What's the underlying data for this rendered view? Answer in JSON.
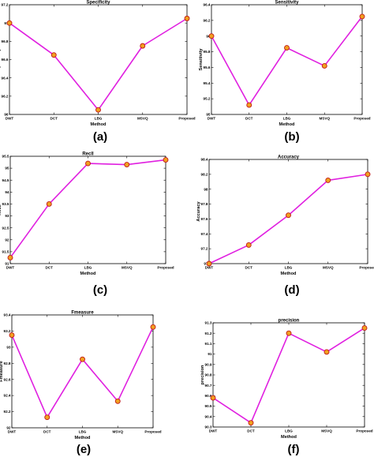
{
  "chart_data": [
    {
      "type": "line",
      "panel_label": "(a)",
      "title": "Specificity",
      "xlabel": "Method",
      "ylabel": "Specificity",
      "categories": [
        "DWT",
        "DCT",
        "LBG",
        "MSVQ",
        "Proposed"
      ],
      "ylim": [
        96,
        97.2
      ],
      "yticks": [
        "96",
        "96.2",
        "96.4",
        "96.6",
        "96.8",
        "97",
        "97.2"
      ],
      "series": [
        {
          "values": [
            97.0,
            96.65,
            96.05,
            96.75,
            97.05
          ]
        }
      ],
      "line_color": "#e020e0",
      "marker_color": "#f0a020",
      "grid": false
    },
    {
      "type": "line",
      "panel_label": "(b)",
      "title": "Sensitivity",
      "xlabel": "Method",
      "ylabel": "Sensitivity",
      "categories": [
        "DWT",
        "DCT",
        "LBG",
        "MSVQ",
        "Proposed"
      ],
      "ylim": [
        95,
        96.4
      ],
      "yticks": [
        "95",
        "95.2",
        "95.4",
        "95.6",
        "95.8",
        "96",
        "96.2",
        "96.4"
      ],
      "series": [
        {
          "values": [
            96.0,
            95.12,
            95.85,
            95.62,
            96.25
          ]
        }
      ],
      "line_color": "#e020e0",
      "marker_color": "#f0a020",
      "grid": false
    },
    {
      "type": "line",
      "panel_label": "(c)",
      "title": "Recll",
      "xlabel": "Method",
      "ylabel": "Recll",
      "categories": [
        "DWT",
        "DCT",
        "LBG",
        "MSVQ",
        "Proposed"
      ],
      "ylim": [
        91,
        95.5
      ],
      "yticks": [
        "91",
        "91.5",
        "92",
        "92.5",
        "93",
        "93.5",
        "94",
        "94.5",
        "95",
        "95.5"
      ],
      "series": [
        {
          "values": [
            91.25,
            93.5,
            95.2,
            95.15,
            95.35
          ]
        }
      ],
      "line_color": "#e020e0",
      "marker_color": "#f0a020",
      "grid": false
    },
    {
      "type": "line",
      "panel_label": "(d)",
      "title": "Accuracy",
      "xlabel": "Method",
      "ylabel": "Accuracy",
      "categories": [
        "DWT",
        "DCT",
        "LBG",
        "MSVQ",
        "Proposed"
      ],
      "ylim": [
        97,
        98.4
      ],
      "yticks": [
        "97",
        "97.2",
        "97.4",
        "97.6",
        "97.8",
        "98",
        "98.2",
        "98.4"
      ],
      "series": [
        {
          "values": [
            97.0,
            97.25,
            97.65,
            98.12,
            98.2
          ]
        }
      ],
      "line_color": "#e020e0",
      "marker_color": "#f0a020",
      "grid": false
    },
    {
      "type": "line",
      "panel_label": "(e)",
      "title": "Fmeasure",
      "xlabel": "Method",
      "ylabel": "Fmeasure",
      "categories": [
        "DWT",
        "DCT",
        "LBG",
        "MSVQ",
        "Proposed"
      ],
      "ylim": [
        92,
        93.4
      ],
      "yticks": [
        "92",
        "92.2",
        "92.4",
        "92.6",
        "92.8",
        "93",
        "93.2",
        "93.4"
      ],
      "series": [
        {
          "values": [
            93.15,
            92.13,
            92.85,
            92.33,
            93.25
          ]
        }
      ],
      "line_color": "#e020e0",
      "marker_color": "#f0a020",
      "grid": false
    },
    {
      "type": "line",
      "panel_label": "(f)",
      "title": "precision",
      "xlabel": "Method",
      "ylabel": "precision",
      "categories": [
        "DWT",
        "DCT",
        "LBG",
        "MSVQ",
        "Proposed"
      ],
      "ylim": [
        90.3,
        91.3
      ],
      "yticks": [
        "90.3",
        "90.4",
        "90.5",
        "90.6",
        "90.7",
        "90.8",
        "90.9",
        "91",
        "91.1",
        "91.2",
        "91.3"
      ],
      "series": [
        {
          "values": [
            90.58,
            90.34,
            91.2,
            91.02,
            91.25
          ]
        }
      ],
      "line_color": "#e020e0",
      "marker_color": "#f0a020",
      "grid": false
    }
  ]
}
